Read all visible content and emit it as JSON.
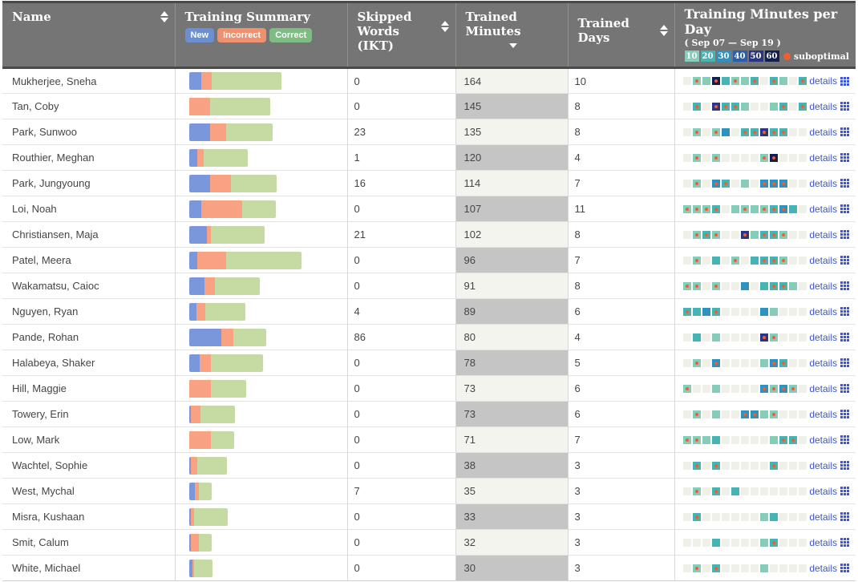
{
  "header": {
    "name_label": "Name",
    "summary_label": "Training Summary",
    "summary_badges": {
      "new": "New",
      "incorrect": "Incorrect",
      "correct": "Correct"
    },
    "skipped_label": "Skipped Words (IKT)",
    "minutes_label": "Trained Minutes",
    "minutes_sort_state": "descending",
    "days_label": "Trained Days",
    "perday_label": "Training Minutes per Day",
    "perday_date_range": "( Sep 07 — Sep 19 )",
    "perday_legend_values": [
      "10",
      "20",
      "30",
      "40",
      "50",
      "60"
    ],
    "suboptimal_label": "suboptimal"
  },
  "details_label": "details",
  "colors": {
    "header_bg": "#757575",
    "badge_new": "#6c8fd3",
    "badge_incorrect": "#f0906e",
    "badge_correct": "#7dbd84",
    "bar_new": "#7b97dc",
    "bar_incorrect": "#f9a183",
    "bar_correct": "#c6dba4",
    "minutes_odd_bg": "#f4f4ef",
    "minutes_even_bg": "#c5c5c5",
    "heat_empty": "#eff1e8",
    "heat_10": "#85cdb9",
    "heat_20": "#46b4b4",
    "heat_30": "#2e92c1",
    "heat_40": "#2b5fae",
    "heat_50": "#2c3584",
    "heat_60": "#131f4d",
    "suboptimal_dot": "#f15f2f",
    "details_link": "#4056c8"
  },
  "chart_data": {
    "type": "table",
    "columns": [
      "Name",
      "Training Summary",
      "Skipped Words (IKT)",
      "Trained Minutes",
      "Trained Days",
      "Training Minutes per Day"
    ],
    "heatmap_note": "heat values: 0=no training that day; 10-60=minutes bucket; suffix s=suboptimal session marker (orange dot); 13 day cells Sep 07 - Sep 19",
    "bar_note": "bar segment widths in px: new/incorrect/correct word counts in training summary",
    "rows": [
      {
        "name": "Mukherjee, Sneha",
        "bar": {
          "new": 15,
          "incorrect": 13,
          "correct": 87
        },
        "skipped": "0",
        "minutes": "164",
        "days": "10",
        "heat": [
          "0",
          "10s",
          "10",
          "60s",
          "20",
          "10s",
          "10",
          "20s",
          "0",
          "20s",
          "10",
          "0",
          "20s"
        ]
      },
      {
        "name": "Tan, Coby",
        "bar": {
          "new": 0,
          "incorrect": 26,
          "correct": 75
        },
        "skipped": "0",
        "minutes": "145",
        "days": "8",
        "heat": [
          "0",
          "20s",
          "0",
          "50s",
          "20s",
          "20s",
          "10",
          "0",
          "0",
          "10",
          "20s",
          "0",
          "20s"
        ]
      },
      {
        "name": "Park, Sunwoo",
        "bar": {
          "new": 26,
          "incorrect": 20,
          "correct": 58
        },
        "skipped": "23",
        "minutes": "135",
        "days": "8",
        "heat": [
          "0",
          "10s",
          "0",
          "10s",
          "30",
          "0",
          "20s",
          "20s",
          "50s",
          "20s",
          "20s",
          "0",
          "0"
        ]
      },
      {
        "name": "Routhier, Meghan",
        "bar": {
          "new": 10,
          "incorrect": 8,
          "correct": 55
        },
        "skipped": "1",
        "minutes": "120",
        "days": "4",
        "heat": [
          "0",
          "10s",
          "0",
          "10s",
          "0",
          "0",
          "0",
          "0",
          "10s",
          "60s",
          "0",
          "0",
          "0"
        ]
      },
      {
        "name": "Park, Jungyoung",
        "bar": {
          "new": 26,
          "incorrect": 26,
          "correct": 57
        },
        "skipped": "16",
        "minutes": "114",
        "days": "7",
        "heat": [
          "0",
          "10s",
          "0",
          "30s",
          "20s",
          "0",
          "10",
          "0",
          "30s",
          "30s",
          "30s",
          "0",
          "0"
        ]
      },
      {
        "name": "Loi, Noah",
        "bar": {
          "new": 15,
          "incorrect": 51,
          "correct": 42
        },
        "skipped": "0",
        "minutes": "107",
        "days": "11",
        "heat": [
          "10s",
          "10s",
          "10s",
          "20s",
          "0",
          "10",
          "10s",
          "10",
          "10s",
          "20s",
          "30s",
          "20",
          "0"
        ]
      },
      {
        "name": "Christiansen, Maja",
        "bar": {
          "new": 22,
          "incorrect": 5,
          "correct": 67
        },
        "skipped": "21",
        "minutes": "102",
        "days": "8",
        "heat": [
          "0",
          "10s",
          "20s",
          "10s",
          "0",
          "0",
          "50s",
          "10",
          "20s",
          "20s",
          "10s",
          "0",
          "0"
        ]
      },
      {
        "name": "Patel, Meera",
        "bar": {
          "new": 10,
          "incorrect": 36,
          "correct": 94
        },
        "skipped": "0",
        "minutes": "96",
        "days": "7",
        "heat": [
          "0",
          "10s",
          "0",
          "20",
          "0",
          "10s",
          "0",
          "20",
          "20s",
          "20s",
          "10s",
          "0",
          "0"
        ]
      },
      {
        "name": "Wakamatsu, Caioc",
        "bar": {
          "new": 19,
          "incorrect": 13,
          "correct": 56
        },
        "skipped": "0",
        "minutes": "91",
        "days": "8",
        "heat": [
          "10s",
          "10s",
          "0",
          "10s",
          "0",
          "0",
          "30",
          "0",
          "20",
          "20s",
          "20s",
          "10",
          "0"
        ]
      },
      {
        "name": "Nguyen, Ryan",
        "bar": {
          "new": 9,
          "incorrect": 11,
          "correct": 50
        },
        "skipped": "4",
        "minutes": "89",
        "days": "6",
        "heat": [
          "20s",
          "20",
          "30",
          "20s",
          "0",
          "0",
          "0",
          "0",
          "30",
          "10",
          "0",
          "0",
          "0"
        ]
      },
      {
        "name": "Pande, Rohan",
        "bar": {
          "new": 40,
          "incorrect": 15,
          "correct": 41
        },
        "skipped": "86",
        "minutes": "80",
        "days": "4",
        "heat": [
          "0",
          "20",
          "0",
          "10",
          "0",
          "0",
          "0",
          "0",
          "50s",
          "10s",
          "0",
          "0",
          "0"
        ]
      },
      {
        "name": "Halabeya, Shaker",
        "bar": {
          "new": 13,
          "incorrect": 14,
          "correct": 65
        },
        "skipped": "0",
        "minutes": "78",
        "days": "5",
        "heat": [
          "0",
          "10s",
          "0",
          "30s",
          "0",
          "0",
          "0",
          "0",
          "10",
          "30s",
          "20s",
          "0",
          "0"
        ]
      },
      {
        "name": "Hill, Maggie",
        "bar": {
          "new": 0,
          "incorrect": 27,
          "correct": 44
        },
        "skipped": "0",
        "minutes": "73",
        "days": "6",
        "heat": [
          "10s",
          "0",
          "0",
          "10",
          "0",
          "0",
          "0",
          "0",
          "30s",
          "10s",
          "30s",
          "10s",
          "0"
        ]
      },
      {
        "name": "Towery, Erin",
        "bar": {
          "new": 2,
          "incorrect": 12,
          "correct": 43
        },
        "skipped": "0",
        "minutes": "73",
        "days": "6",
        "heat": [
          "0",
          "10s",
          "0",
          "10",
          "0",
          "0",
          "30s",
          "30s",
          "10",
          "10s",
          "0",
          "0",
          "0"
        ]
      },
      {
        "name": "Low, Mark",
        "bar": {
          "new": 0,
          "incorrect": 27,
          "correct": 29
        },
        "skipped": "0",
        "minutes": "71",
        "days": "7",
        "heat": [
          "10s",
          "10s",
          "10",
          "20",
          "0",
          "0",
          "0",
          "0",
          "0",
          "10",
          "20s",
          "20s",
          "0"
        ]
      },
      {
        "name": "Wachtel, Sophie",
        "bar": {
          "new": 2,
          "incorrect": 8,
          "correct": 37
        },
        "skipped": "0",
        "minutes": "38",
        "days": "3",
        "heat": [
          "0",
          "20s",
          "0",
          "20s",
          "0",
          "0",
          "0",
          "0",
          "0",
          "20s",
          "0",
          "0",
          "0"
        ]
      },
      {
        "name": "West, Mychal",
        "bar": {
          "new": 7,
          "incorrect": 5,
          "correct": 16
        },
        "skipped": "7",
        "minutes": "35",
        "days": "3",
        "heat": [
          "0",
          "10s",
          "0",
          "20s",
          "0",
          "20",
          "0",
          "0",
          "0",
          "0",
          "0",
          "0",
          "0"
        ]
      },
      {
        "name": "Misra, Kushaan",
        "bar": {
          "new": 2,
          "incorrect": 4,
          "correct": 42
        },
        "skipped": "0",
        "minutes": "33",
        "days": "3",
        "heat": [
          "0",
          "20s",
          "0",
          "0",
          "0",
          "0",
          "0",
          "0",
          "10",
          "20",
          "0",
          "0",
          "0"
        ]
      },
      {
        "name": "Smit, Calum",
        "bar": {
          "new": 2,
          "incorrect": 10,
          "correct": 16
        },
        "skipped": "0",
        "minutes": "32",
        "days": "3",
        "heat": [
          "0",
          "0",
          "0",
          "20",
          "0",
          "0",
          "0",
          "0",
          "10",
          "20s",
          "0",
          "0",
          "0"
        ]
      },
      {
        "name": "White, Michael",
        "bar": {
          "new": 4,
          "incorrect": 2,
          "correct": 23
        },
        "skipped": "0",
        "minutes": "30",
        "days": "3",
        "heat": [
          "0",
          "10s",
          "0",
          "20s",
          "0",
          "0",
          "0",
          "0",
          "10",
          "0",
          "0",
          "0",
          "0"
        ]
      }
    ]
  }
}
